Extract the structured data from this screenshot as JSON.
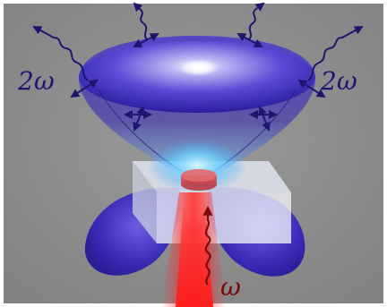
{
  "labels": {
    "sh_left": "2ω",
    "sh_right": "2ω",
    "fundamental": "ω"
  },
  "colors": {
    "background": "#8e8e8e",
    "lobe_blue": "#3b2fb8",
    "lobe_dark": "#22168a",
    "arrow_navy": "#1d1670",
    "beam_red": "#e8141a",
    "pulse_dark_red": "#7a0a0a",
    "substrate": "#e9edf6",
    "glow_cyan": "#6fd3ff"
  },
  "icons": {
    "polarization_arrow": "double-headed-arrow-icon",
    "wave_packet": "wave-packet-icon"
  }
}
